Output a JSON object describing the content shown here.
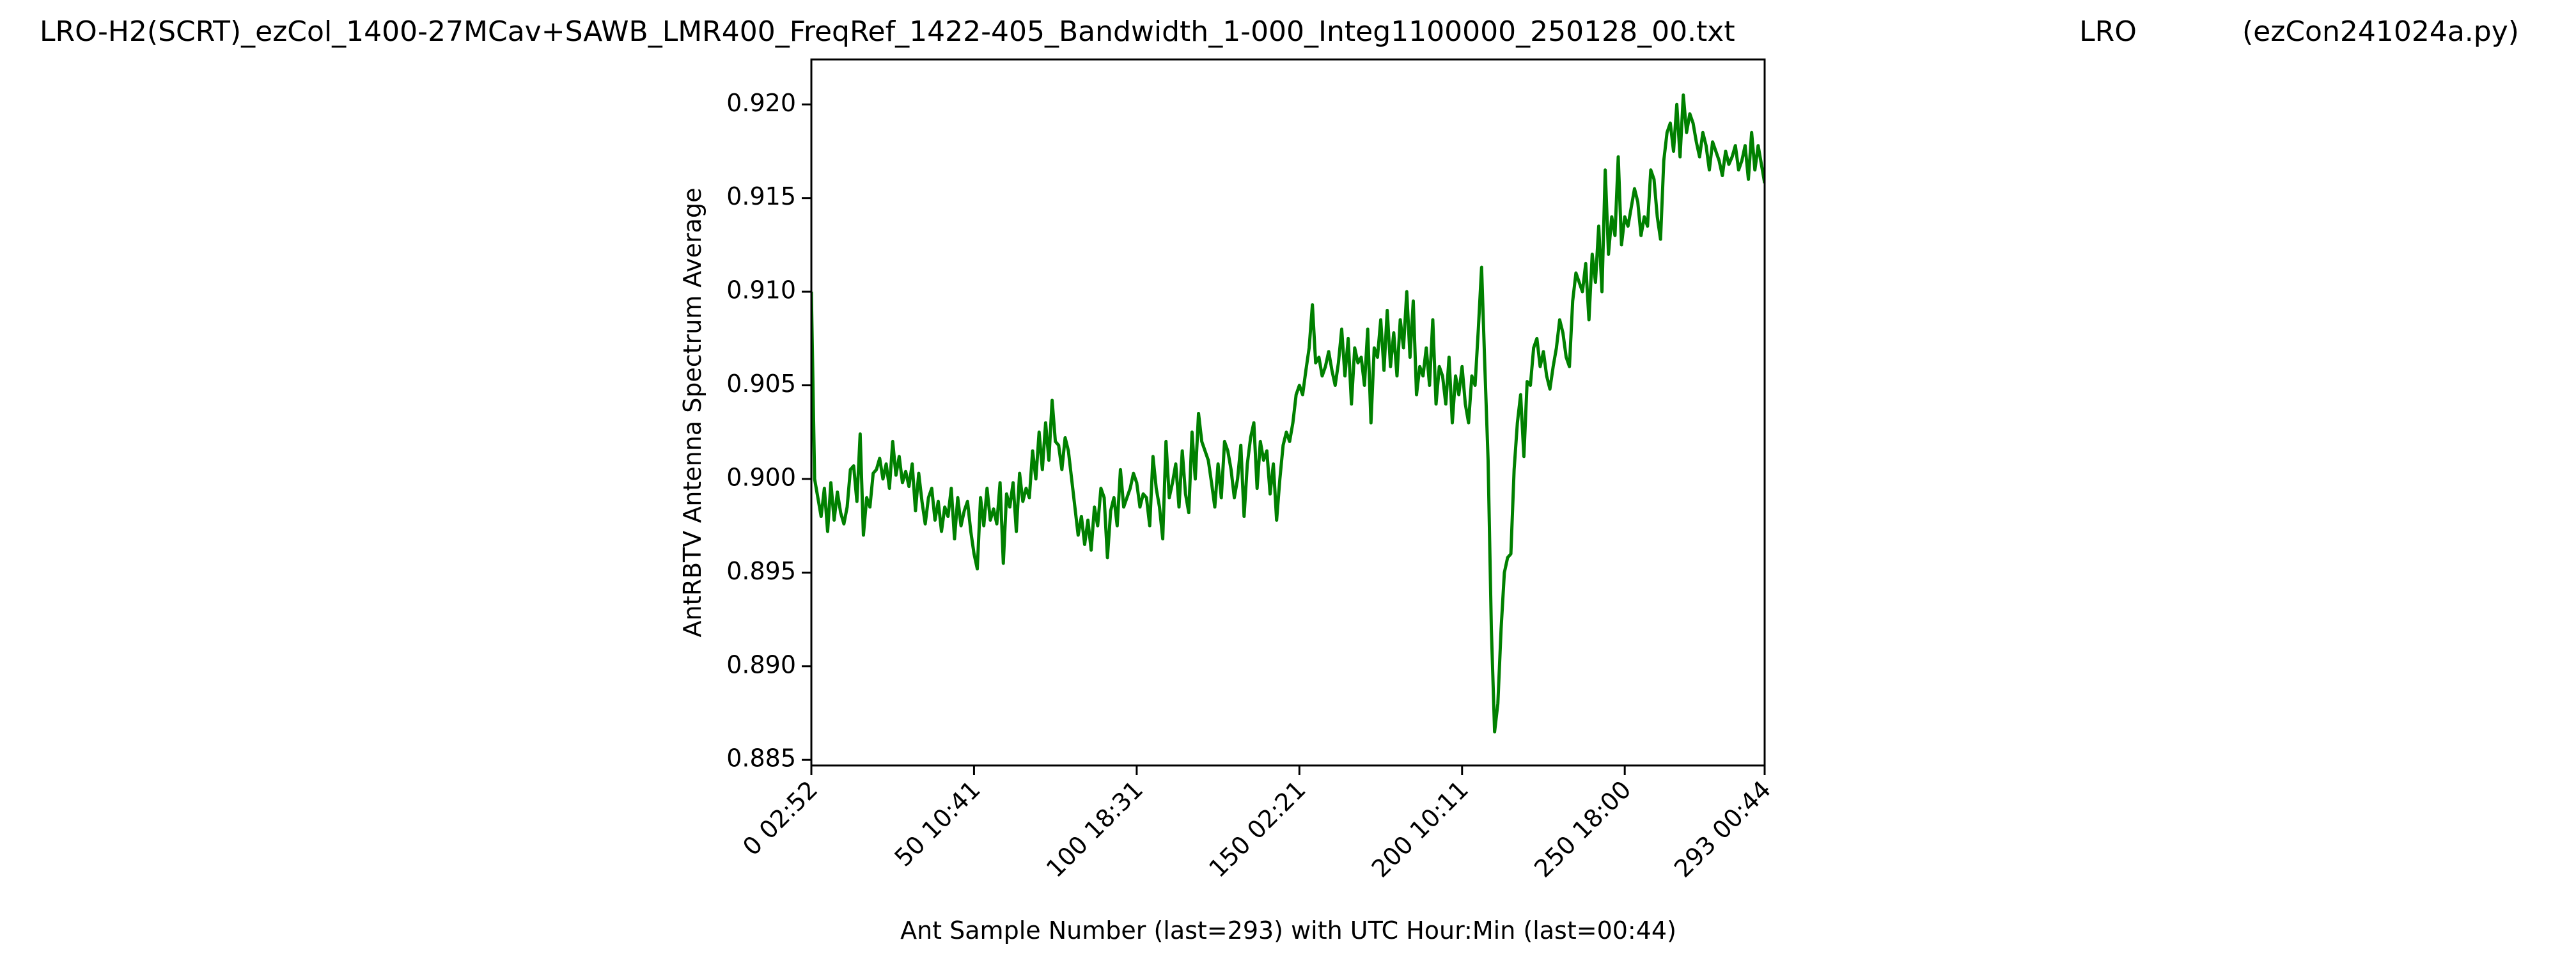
{
  "chart_data": {
    "type": "line",
    "title_segments": [
      "LRO-H2(SCRT)_ezCol_1400-27MCav+SAWB_LMR400_FreqRef_1422-405_Bandwidth_1-000_Integ1100000_250128_00.txt",
      "LRO",
      "(ezCon241024a.py)"
    ],
    "xlabel": "Ant Sample Number (last=293) with UTC Hour:Min (last=00:44)",
    "ylabel": "AntRBTV Antenna Spectrum Average",
    "xlim": [
      0,
      293
    ],
    "ylim": [
      0.8847,
      0.9224
    ],
    "xticks": [
      {
        "value": 0,
        "label": "0  02:52"
      },
      {
        "value": 50,
        "label": "50  10:41"
      },
      {
        "value": 100,
        "label": "100  18:31"
      },
      {
        "value": 150,
        "label": "150  02:21"
      },
      {
        "value": 200,
        "label": "200  10:11"
      },
      {
        "value": 250,
        "label": "250  18:00"
      },
      {
        "value": 293,
        "label": "293  00:44"
      }
    ],
    "yticks": [
      {
        "value": 0.885,
        "label": "0.885"
      },
      {
        "value": 0.89,
        "label": "0.890"
      },
      {
        "value": 0.895,
        "label": "0.895"
      },
      {
        "value": 0.9,
        "label": "0.900"
      },
      {
        "value": 0.905,
        "label": "0.905"
      },
      {
        "value": 0.91,
        "label": "0.910"
      },
      {
        "value": 0.915,
        "label": "0.915"
      },
      {
        "value": 0.92,
        "label": "0.920"
      }
    ],
    "grid": false,
    "series": [
      {
        "color": "#008000",
        "values": [
          0.91,
          0.9,
          0.899,
          0.898,
          0.8995,
          0.8972,
          0.8998,
          0.8978,
          0.8993,
          0.8982,
          0.8976,
          0.8985,
          0.9005,
          0.9007,
          0.8988,
          0.9024,
          0.897,
          0.899,
          0.8985,
          0.9003,
          0.9005,
          0.9011,
          0.9,
          0.9008,
          0.8995,
          0.902,
          0.9002,
          0.9012,
          0.8998,
          0.9004,
          0.8996,
          0.9008,
          0.8983,
          0.9003,
          0.8988,
          0.8976,
          0.899,
          0.8995,
          0.8978,
          0.8988,
          0.8972,
          0.8985,
          0.898,
          0.8995,
          0.8968,
          0.899,
          0.8975,
          0.8983,
          0.8988,
          0.8972,
          0.896,
          0.8952,
          0.899,
          0.8975,
          0.8995,
          0.8978,
          0.8984,
          0.8976,
          0.8998,
          0.8955,
          0.8992,
          0.8985,
          0.8998,
          0.8972,
          0.9003,
          0.8988,
          0.8995,
          0.899,
          0.9015,
          0.9,
          0.9025,
          0.9005,
          0.903,
          0.901,
          0.9042,
          0.902,
          0.9018,
          0.9005,
          0.9022,
          0.9015,
          0.9,
          0.8985,
          0.897,
          0.898,
          0.8965,
          0.8978,
          0.8962,
          0.8985,
          0.8975,
          0.8995,
          0.899,
          0.8958,
          0.8983,
          0.899,
          0.8975,
          0.9005,
          0.8985,
          0.899,
          0.8995,
          0.9003,
          0.8998,
          0.8985,
          0.8992,
          0.899,
          0.8975,
          0.9012,
          0.8995,
          0.8985,
          0.8968,
          0.902,
          0.899,
          0.8998,
          0.9008,
          0.8985,
          0.9015,
          0.8992,
          0.8982,
          0.9025,
          0.9,
          0.9035,
          0.902,
          0.9015,
          0.901,
          0.8998,
          0.8985,
          0.9008,
          0.899,
          0.902,
          0.9015,
          0.9005,
          0.899,
          0.9,
          0.9018,
          0.898,
          0.9008,
          0.9022,
          0.903,
          0.8995,
          0.902,
          0.901,
          0.9015,
          0.8992,
          0.9008,
          0.8978,
          0.9,
          0.9018,
          0.9025,
          0.902,
          0.903,
          0.9045,
          0.905,
          0.9045,
          0.9058,
          0.907,
          0.9093,
          0.9062,
          0.9065,
          0.9055,
          0.906,
          0.9068,
          0.9058,
          0.905,
          0.9062,
          0.908,
          0.9055,
          0.9075,
          0.904,
          0.907,
          0.9062,
          0.9065,
          0.905,
          0.908,
          0.903,
          0.907,
          0.9065,
          0.9085,
          0.9058,
          0.909,
          0.906,
          0.9078,
          0.9055,
          0.9085,
          0.907,
          0.91,
          0.9065,
          0.9095,
          0.9045,
          0.906,
          0.9055,
          0.907,
          0.905,
          0.9085,
          0.904,
          0.906,
          0.9055,
          0.904,
          0.9065,
          0.903,
          0.9055,
          0.9045,
          0.906,
          0.904,
          0.903,
          0.9055,
          0.905,
          0.908,
          0.9113,
          0.906,
          0.901,
          0.892,
          0.8865,
          0.888,
          0.892,
          0.895,
          0.8958,
          0.896,
          0.9005,
          0.903,
          0.9045,
          0.9012,
          0.9052,
          0.905,
          0.907,
          0.9075,
          0.906,
          0.9068,
          0.9055,
          0.9048,
          0.906,
          0.907,
          0.9085,
          0.9078,
          0.9065,
          0.906,
          0.9095,
          0.911,
          0.9105,
          0.91,
          0.9115,
          0.9085,
          0.912,
          0.9105,
          0.9135,
          0.91,
          0.9165,
          0.912,
          0.914,
          0.913,
          0.9172,
          0.9125,
          0.914,
          0.9135,
          0.9145,
          0.9155,
          0.9148,
          0.913,
          0.914,
          0.9135,
          0.9165,
          0.916,
          0.914,
          0.9128,
          0.917,
          0.9185,
          0.919,
          0.9175,
          0.92,
          0.9172,
          0.9205,
          0.9185,
          0.9195,
          0.919,
          0.918,
          0.9172,
          0.9185,
          0.9178,
          0.9165,
          0.918,
          0.9175,
          0.917,
          0.9162,
          0.9175,
          0.9168,
          0.9172,
          0.9178,
          0.9165,
          0.917,
          0.9178,
          0.916,
          0.9185,
          0.9165,
          0.9178,
          0.9168,
          0.9158
        ]
      }
    ]
  }
}
